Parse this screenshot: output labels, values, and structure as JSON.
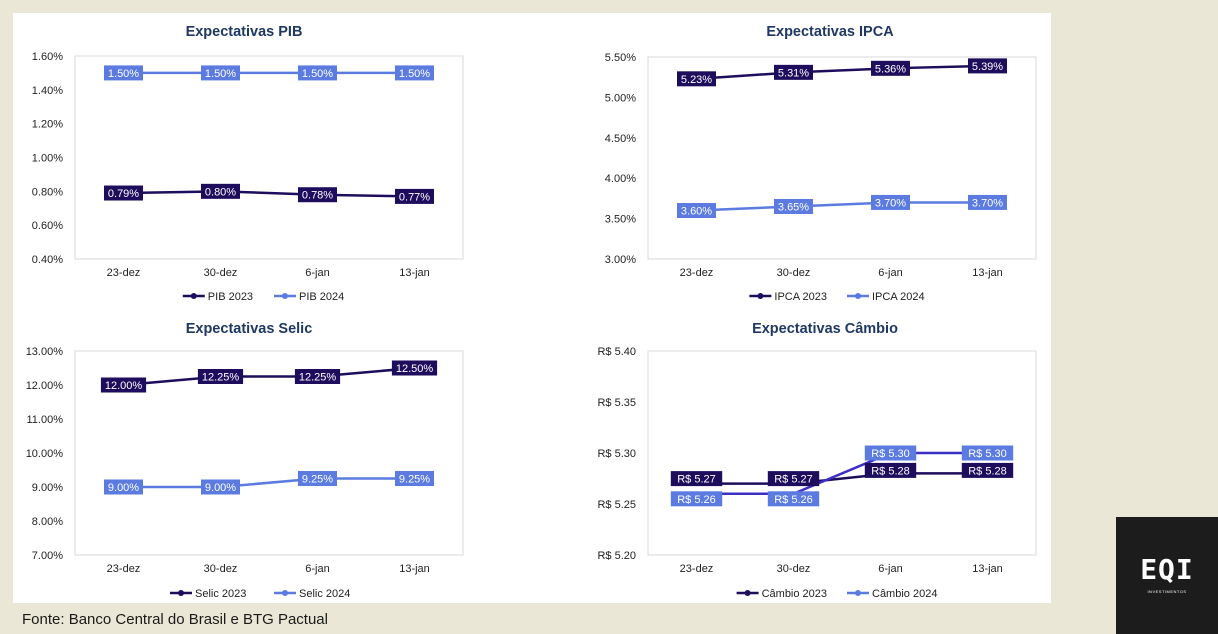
{
  "source_note": "Fonte: Banco Central do Brasil e BTG Pactual",
  "logo": {
    "main": "EQI",
    "sub": "INVESTIMENTOS"
  },
  "colors": {
    "series_2023": "#1d0d5c",
    "series_2024": "#5b7be0",
    "cambio_2024_line": "#3d2ec4"
  },
  "chart_data": [
    {
      "type": "line",
      "title": "Expectativas PIB",
      "categories": [
        "23-dez",
        "30-dez",
        "6-jan",
        "13-jan"
      ],
      "yticks": [
        "0.40%",
        "0.60%",
        "0.80%",
        "1.00%",
        "1.20%",
        "1.40%",
        "1.60%"
      ],
      "ylim": [
        0.4,
        1.6
      ],
      "series": [
        {
          "name": "PIB 2023",
          "values": [
            0.79,
            0.8,
            0.78,
            0.77
          ],
          "labels": [
            "0.79%",
            "0.80%",
            "0.78%",
            "0.77%"
          ]
        },
        {
          "name": "PIB 2024",
          "values": [
            1.5,
            1.5,
            1.5,
            1.5
          ],
          "labels": [
            "1.50%",
            "1.50%",
            "1.50%",
            "1.50%"
          ]
        }
      ],
      "legend": "bottom"
    },
    {
      "type": "line",
      "title": "Expectativas IPCA",
      "categories": [
        "23-dez",
        "30-dez",
        "6-jan",
        "13-jan"
      ],
      "yticks": [
        "3.00%",
        "3.50%",
        "4.00%",
        "4.50%",
        "5.00%",
        "5.50%"
      ],
      "ylim": [
        3.0,
        5.5
      ],
      "series": [
        {
          "name": "IPCA 2023",
          "values": [
            5.23,
            5.31,
            5.36,
            5.39
          ],
          "labels": [
            "5.23%",
            "5.31%",
            "5.36%",
            "5.39%"
          ]
        },
        {
          "name": "IPCA 2024",
          "values": [
            3.6,
            3.65,
            3.7,
            3.7
          ],
          "labels": [
            "3.60%",
            "3.65%",
            "3.70%",
            "3.70%"
          ]
        }
      ],
      "legend": "bottom"
    },
    {
      "type": "line",
      "title": "Expectativas Selic",
      "categories": [
        "23-dez",
        "30-dez",
        "6-jan",
        "13-jan"
      ],
      "yticks": [
        "7.00%",
        "8.00%",
        "9.00%",
        "10.00%",
        "11.00%",
        "12.00%",
        "13.00%"
      ],
      "ylim": [
        7.0,
        13.0
      ],
      "series": [
        {
          "name": "Selic 2023",
          "values": [
            12.0,
            12.25,
            12.25,
            12.5
          ],
          "labels": [
            "12.00%",
            "12.25%",
            "12.25%",
            "12.50%"
          ]
        },
        {
          "name": "Selic 2024",
          "values": [
            9.0,
            9.0,
            9.25,
            9.25
          ],
          "labels": [
            "9.00%",
            "9.00%",
            "9.25%",
            "9.25%"
          ]
        }
      ],
      "legend": "bottom"
    },
    {
      "type": "line",
      "title": "Expectativas Câmbio",
      "categories": [
        "23-dez",
        "30-dez",
        "6-jan",
        "13-jan"
      ],
      "yticks": [
        "R$ 5.20",
        "R$ 5.25",
        "R$ 5.30",
        "R$ 5.35",
        "R$ 5.40"
      ],
      "ylim": [
        5.2,
        5.4
      ],
      "series": [
        {
          "name": "Câmbio 2023",
          "values": [
            5.27,
            5.27,
            5.28,
            5.28
          ],
          "labels": [
            "R$ 5.27",
            "R$ 5.27",
            "R$ 5.28",
            "R$ 5.28"
          ]
        },
        {
          "name": "Câmbio 2024",
          "values": [
            5.26,
            5.26,
            5.3,
            5.3
          ],
          "labels": [
            "R$ 5.26",
            "R$ 5.26",
            "R$ 5.30",
            "R$ 5.30"
          ]
        }
      ],
      "legend": "bottom"
    }
  ]
}
